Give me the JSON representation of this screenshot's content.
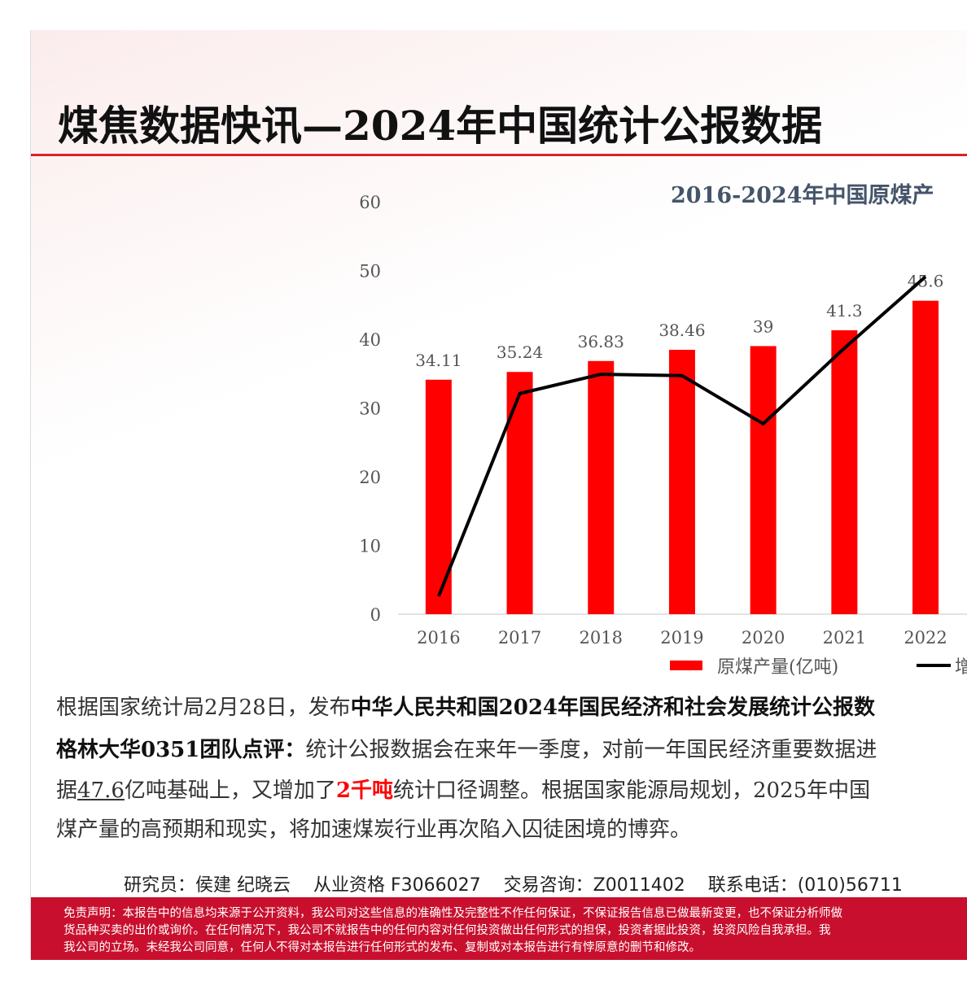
{
  "header": {
    "title": "煤焦数据快讯—2024年中国统计公报数据"
  },
  "chart_data": {
    "type": "bar",
    "title": "2016-2024年中国原煤产",
    "categories": [
      "2016",
      "2017",
      "2018",
      "2019",
      "2020",
      "2021",
      "2022"
    ],
    "series": [
      {
        "name": "原煤产量(亿吨)",
        "type": "bar",
        "color": "#ff0000",
        "values": [
          34.11,
          35.24,
          36.83,
          38.46,
          39,
          41.3,
          45.6
        ]
      },
      {
        "name": "增速",
        "type": "line",
        "color": "#000000",
        "values": [
          2.6,
          32.1,
          34.9,
          34.7,
          27.7,
          38.7,
          49.1
        ]
      }
    ],
    "ylim": [
      0,
      60
    ],
    "yticks": [
      0,
      10,
      20,
      30,
      40,
      50,
      60
    ]
  },
  "body": {
    "lines": [
      [
        "根据国家统计局2月28日，发布",
        "中华人民共和国2024年国民经济和社会发展统计公报数"
      ],
      [
        "格林大华0351团队点评：",
        "统计公报数据会在来年一季度，对前一年国民经济重要数据进"
      ],
      [
        "据",
        "47.6",
        "亿吨基础上，又增加了",
        "2千吨",
        "统计口径调整。根据国家能源局规划，2025年中国"
      ],
      [
        "煤产量的高预期和现实，将加速煤炭行业再次陷入囚徒困境的博弈。"
      ]
    ]
  },
  "footer": {
    "researcher": "研究员：侯建 纪晓云",
    "license": "从业资格 F3066027",
    "consult": "交易咨询：Z0011402",
    "phone": "联系电话：(010)56711"
  },
  "disclaimer": {
    "lines": [
      "免责声明：本报告中的信息均来源于公开资料，我公司对这些信息的准确性及完整性不作任何保证，不保证报告信息已做最新变更，也不保证分析师做",
      "货品种买卖的出价或询价。在任何情况下，我公司不就报告中的任何内容对任何投资做出任何形式的担保，投资者据此投资，投资风险自我承担。我",
      "我公司的立场。未经我公司同意，任何人不得对本报告进行任何形式的发布、复制或对本报告进行有悖原意的删节和修改。"
    ]
  }
}
